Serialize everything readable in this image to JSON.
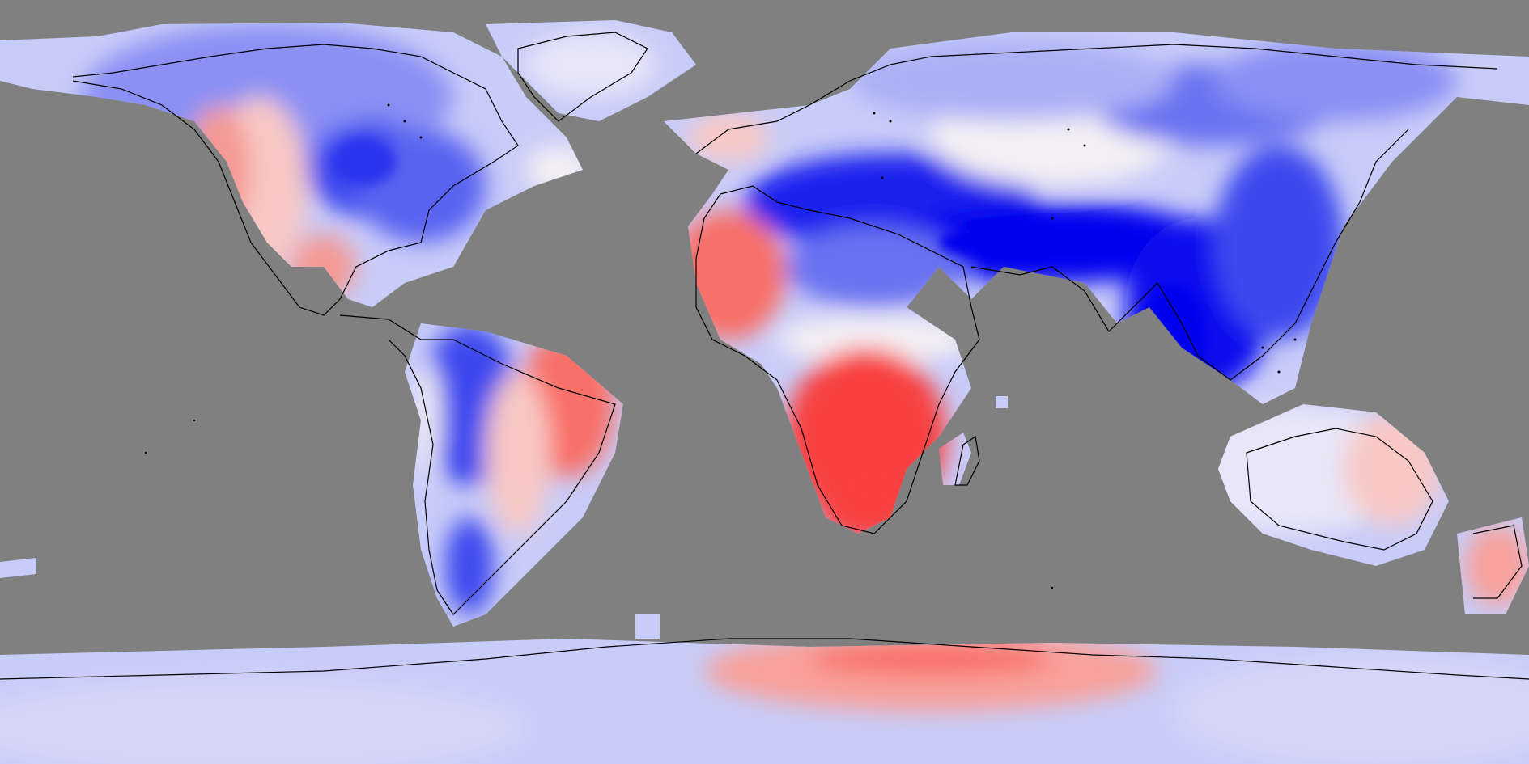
{
  "map": {
    "projection": "equirectangular",
    "ocean_color": "#808080",
    "coastline_color": "#000000",
    "palette": {
      "strong_negative": "#0000ee",
      "negative": "#5a64f0",
      "light_negative": "#c8ccf8",
      "neutral": "#f4f0f4",
      "light_positive": "#f8c8c4",
      "positive": "#f87068",
      "strong_positive": "#f84040"
    }
  }
}
